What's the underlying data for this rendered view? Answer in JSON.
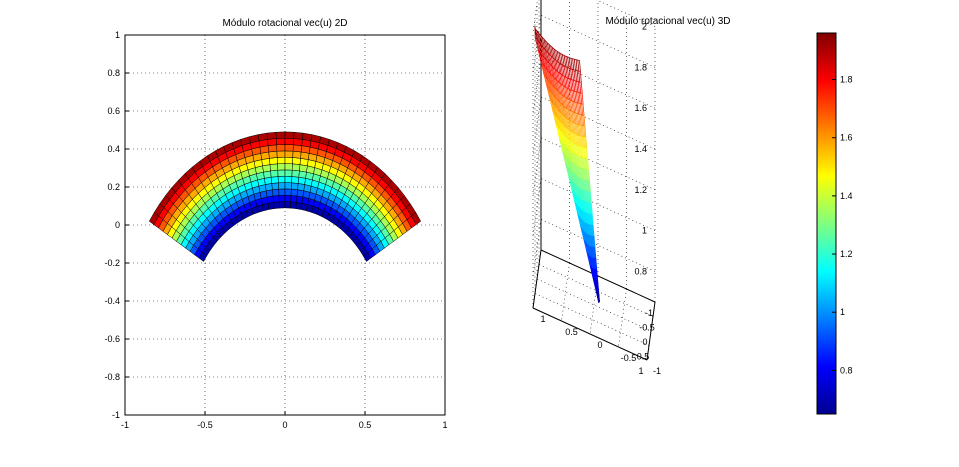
{
  "chart_data": [
    {
      "type": "surface-2d",
      "title": "Módulo rotacional vec(u) 2D",
      "xlabel": "",
      "ylabel": "",
      "xlim": [
        -1,
        1
      ],
      "ylim": [
        -1,
        1
      ],
      "grid": true,
      "x_ticks": [
        "-1",
        "-0.5",
        "0",
        "0.5",
        "1"
      ],
      "y_ticks": [
        "-1",
        "-0.8",
        "-0.6",
        "-0.4",
        "-0.2",
        "0",
        "0.2",
        "0.4",
        "0.6",
        "0.8",
        "1"
      ],
      "domain": {
        "description_in_data_units": "annular band mapped with (x,y) = (r*sin(theta), r*cos(theta) - 0.51)",
        "r_range": [
          0.6,
          1.0
        ],
        "theta_range_deg": [
          -58,
          58
        ],
        "value_range": [
          0.65,
          1.96
        ]
      }
    },
    {
      "type": "surface-3d",
      "title": "Módulo rotacional vec(u) 3D",
      "xlabel": "",
      "ylabel": "",
      "zlabel": "",
      "xlim": [
        -1,
        1
      ],
      "ylim": [
        -1,
        1
      ],
      "zlim": [
        0.65,
        2.0
      ],
      "grid": true,
      "x_ticks": [
        "-1",
        "-0.5",
        "0",
        "0.5",
        "1"
      ],
      "y_ticks": [
        "-1",
        "-0.5",
        "0",
        "0.5",
        "1"
      ],
      "z_ticks": [
        "0.8",
        "1",
        "1.2",
        "1.4",
        "1.6",
        "1.8",
        "2"
      ],
      "value_range": [
        0.65,
        1.96
      ]
    }
  ],
  "colorbar": {
    "colormap": "jet",
    "range": [
      0.65,
      1.96
    ],
    "ticks": [
      "0.8",
      "1",
      "1.2",
      "1.4",
      "1.6",
      "1.8"
    ],
    "tick_values": [
      0.8,
      1.0,
      1.2,
      1.4,
      1.6,
      1.8
    ]
  }
}
